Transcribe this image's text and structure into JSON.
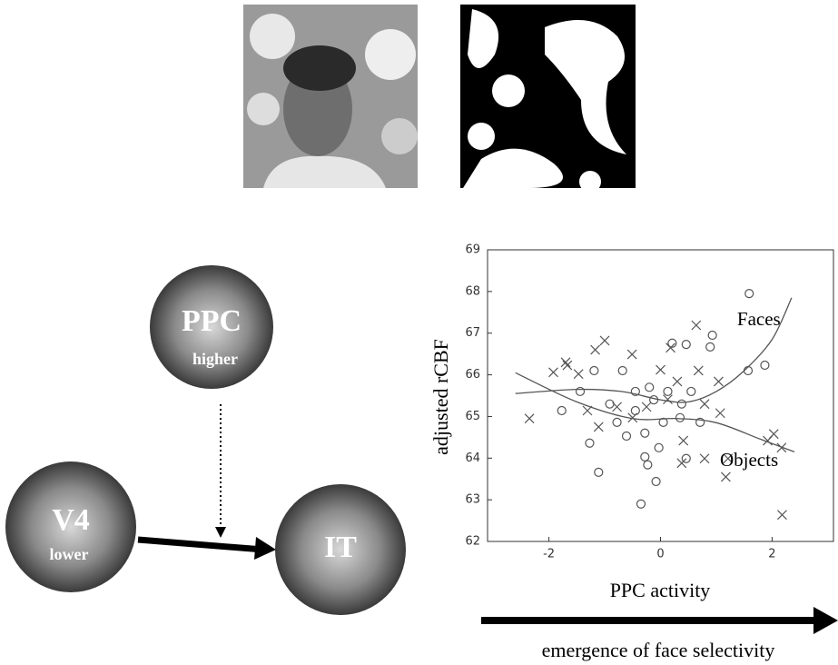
{
  "chart_data": {
    "type": "scatter",
    "xlabel": "PPC activity",
    "ylabel": "adjusted rCBF",
    "xlim": [
      -3.1,
      3.1
    ],
    "ylim": [
      62,
      69
    ],
    "xticks": [
      -2,
      0,
      2
    ],
    "yticks": [
      62,
      63,
      64,
      65,
      66,
      67,
      68,
      69
    ],
    "color": "#555555",
    "series": [
      {
        "marker": "circle",
        "x": [
          1.59,
          0.21,
          0.46,
          0.93,
          0.89,
          1.87,
          1.57,
          -0.68,
          -1.19,
          -0.45,
          -0.2,
          0.13,
          0.55,
          -1.44,
          -1.77,
          -0.91,
          -0.45,
          -0.12,
          0.38,
          0.71,
          -0.78,
          0.05,
          -0.28,
          -0.61,
          -1.27,
          -0.03,
          -0.28,
          -0.23,
          -1.11,
          -0.08,
          -0.35,
          0.46,
          0.35
        ],
        "y": [
          67.95,
          66.76,
          66.73,
          66.95,
          66.67,
          66.23,
          66.1,
          66.1,
          66.1,
          65.6,
          65.7,
          65.6,
          65.6,
          65.6,
          65.14,
          65.3,
          65.14,
          65.4,
          65.3,
          64.86,
          64.86,
          64.86,
          64.6,
          64.53,
          64.36,
          64.25,
          64.03,
          63.84,
          63.66,
          63.44,
          62.9,
          63.99,
          64.97
        ]
      },
      {
        "marker": "cross",
        "x": [
          -1.7,
          -1.67,
          -1.0,
          -1.17,
          0,
          -0.51,
          0.18,
          0.64,
          0.68,
          -1.92,
          -1.47,
          -2.35,
          -1.31,
          -0.78,
          -0.5,
          -0.25,
          0.13,
          0.79,
          1.07,
          -1.11,
          0.41,
          0.38,
          0.79,
          1.21,
          1.17,
          1.92,
          2.03,
          2.17,
          2.18,
          0.3,
          1.04
        ],
        "y": [
          66.3,
          66.23,
          66.82,
          66.6,
          66.12,
          66.49,
          66.65,
          67.19,
          66.1,
          66.06,
          66.02,
          64.95,
          65.14,
          65.23,
          64.97,
          65.23,
          65.41,
          65.3,
          65.08,
          64.75,
          64.42,
          63.88,
          63.99,
          63.99,
          63.55,
          64.42,
          64.58,
          64.25,
          62.64,
          65.84,
          65.84
        ]
      }
    ],
    "fits": [
      {
        "label": "Faces",
        "x": [
          -2.6,
          -1.5,
          -0.7,
          0,
          0.5,
          1.0,
          1.5,
          2.0,
          2.35
        ],
        "y": [
          65.55,
          65.65,
          65.6,
          65.4,
          65.35,
          65.6,
          66.1,
          66.85,
          67.85
        ]
      },
      {
        "label": "Objects",
        "x": [
          -2.6,
          -1.5,
          -0.5,
          0.3,
          1.0,
          1.8,
          2.4
        ],
        "y": [
          66.05,
          65.35,
          64.95,
          64.95,
          64.85,
          64.45,
          64.15
        ]
      }
    ]
  },
  "caption": "emergence of face selectivity",
  "nodes": [
    {
      "label": "PPC",
      "sublabel": "higher"
    },
    {
      "label": "V4",
      "sublabel": "lower"
    },
    {
      "label": "IT"
    }
  ]
}
